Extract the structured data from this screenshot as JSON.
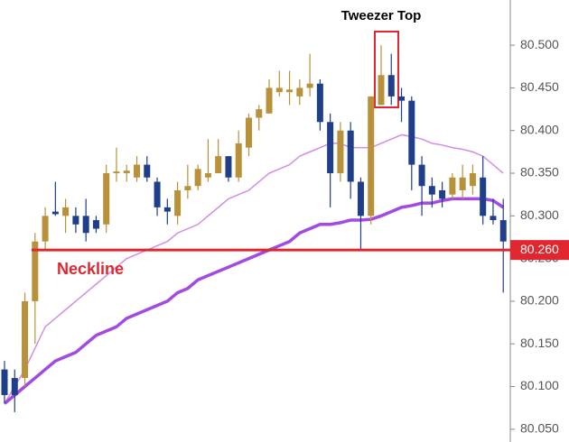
{
  "chart_data": {
    "type": "candlestick",
    "annotation": "Tweezer Top",
    "neckline": {
      "label": "Neckline",
      "value": 80.26,
      "value_label": "80.260",
      "color": "#e0262e"
    },
    "up_color": "#b8913a",
    "down_color": "#1f3f8a",
    "candles": {
      "open": [
        80.12,
        80.11,
        80.11,
        80.2,
        80.27,
        80.305,
        80.3,
        80.3,
        80.3,
        80.295,
        80.29,
        80.35,
        80.35,
        80.345,
        80.36,
        80.34,
        80.31,
        80.3,
        80.33,
        80.335,
        80.345,
        80.35,
        80.37,
        80.345,
        80.38,
        80.415,
        80.42,
        80.445,
        80.445,
        80.44,
        80.45,
        80.455,
        80.41,
        80.35,
        80.4,
        80.34,
        80.3,
        80.43,
        80.465,
        80.44,
        80.435,
        80.36,
        80.335,
        80.33,
        80.325,
        80.33,
        80.335,
        80.345,
        80.3,
        80.295
      ],
      "high": [
        80.13,
        80.12,
        80.21,
        80.28,
        80.31,
        80.34,
        80.32,
        80.31,
        80.32,
        80.3,
        80.36,
        80.38,
        80.36,
        80.37,
        80.37,
        80.345,
        80.32,
        80.34,
        80.36,
        80.36,
        80.39,
        80.39,
        80.37,
        80.4,
        80.42,
        80.43,
        80.46,
        80.47,
        80.47,
        80.46,
        80.49,
        80.46,
        80.42,
        80.41,
        80.41,
        80.345,
        80.44,
        80.5,
        80.49,
        80.45,
        80.44,
        80.37,
        80.345,
        80.34,
        80.35,
        80.36,
        80.36,
        80.37,
        80.32,
        80.32
      ],
      "low": [
        80.08,
        80.07,
        80.1,
        80.15,
        80.26,
        80.3,
        80.28,
        80.28,
        80.27,
        80.28,
        80.28,
        80.34,
        80.34,
        80.34,
        80.34,
        80.3,
        80.29,
        80.29,
        80.32,
        80.33,
        80.34,
        80.35,
        80.34,
        80.34,
        80.37,
        80.4,
        80.42,
        80.44,
        80.43,
        80.43,
        80.44,
        80.4,
        80.31,
        80.34,
        80.32,
        80.26,
        80.29,
        80.43,
        80.43,
        80.41,
        80.33,
        80.3,
        80.31,
        80.31,
        80.32,
        80.32,
        80.325,
        80.29,
        80.29,
        80.21
      ],
      "close": [
        80.09,
        80.09,
        80.2,
        80.27,
        80.3,
        80.302,
        80.31,
        80.29,
        80.28,
        80.285,
        80.35,
        80.352,
        80.353,
        80.36,
        80.345,
        80.31,
        80.305,
        80.33,
        80.335,
        80.355,
        80.35,
        80.37,
        80.345,
        80.385,
        80.415,
        80.425,
        80.45,
        80.45,
        80.448,
        80.45,
        80.455,
        80.41,
        80.35,
        80.4,
        80.34,
        80.3,
        80.44,
        80.465,
        80.44,
        80.435,
        80.36,
        80.335,
        80.325,
        80.32,
        80.345,
        80.345,
        80.35,
        80.3,
        80.295,
        80.27
      ]
    },
    "overlays": [
      {
        "color": "#d08ee8",
        "values": [
          80.08,
          80.1,
          80.12,
          80.145,
          80.17,
          80.18,
          80.19,
          80.2,
          80.21,
          80.22,
          80.23,
          80.24,
          80.25,
          80.255,
          80.26,
          80.265,
          80.27,
          80.28,
          80.285,
          80.29,
          80.3,
          80.31,
          80.32,
          80.325,
          80.33,
          80.34,
          80.35,
          80.355,
          80.36,
          80.37,
          80.375,
          80.38,
          80.385,
          80.385,
          80.38,
          80.38,
          80.38,
          80.385,
          80.39,
          80.395,
          80.393,
          80.39,
          80.385,
          80.383,
          80.38,
          80.378,
          80.375,
          80.37,
          80.36,
          80.35
        ]
      },
      {
        "color": "#a24be0",
        "values": [
          80.08,
          80.09,
          80.1,
          80.11,
          80.12,
          80.13,
          80.135,
          80.14,
          80.15,
          80.16,
          80.165,
          80.17,
          80.18,
          80.185,
          80.19,
          80.195,
          80.2,
          80.21,
          80.215,
          80.225,
          80.23,
          80.235,
          80.24,
          80.245,
          80.25,
          80.255,
          80.26,
          80.265,
          80.27,
          80.28,
          80.285,
          80.29,
          80.29,
          80.292,
          80.295,
          80.295,
          80.296,
          80.3,
          80.305,
          80.31,
          80.312,
          80.315,
          80.315,
          80.318,
          80.32,
          80.32,
          80.32,
          80.32,
          80.318,
          80.31
        ]
      }
    ],
    "ylim": [
      80.035,
      80.553
    ],
    "yticks": [
      {
        "value": 80.05,
        "label": "80.050"
      },
      {
        "value": 80.1,
        "label": "80.100"
      },
      {
        "value": 80.15,
        "label": "80.150"
      },
      {
        "value": 80.2,
        "label": "80.200"
      },
      {
        "value": 80.25,
        "label": "80.250"
      },
      {
        "value": 80.3,
        "label": "80.300"
      },
      {
        "value": 80.35,
        "label": "80.350"
      },
      {
        "value": 80.4,
        "label": "80.400"
      },
      {
        "value": 80.45,
        "label": "80.450"
      },
      {
        "value": 80.5,
        "label": "80.500"
      }
    ]
  }
}
